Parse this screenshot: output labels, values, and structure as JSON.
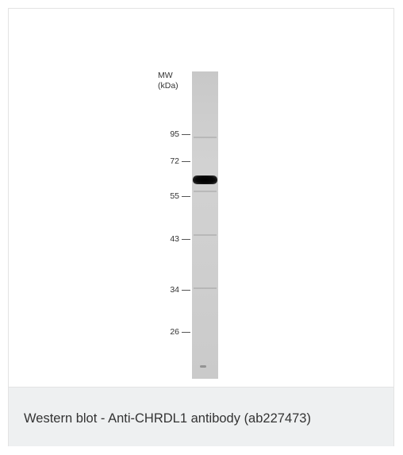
{
  "figure": {
    "mw_label_line1": "MW",
    "mw_label_line2": "(kDa)",
    "markers": [
      "95",
      "72",
      "55",
      "43",
      "34",
      "26"
    ]
  },
  "caption": "Western blot - Anti-CHRDL1 antibody (ab227473)"
}
